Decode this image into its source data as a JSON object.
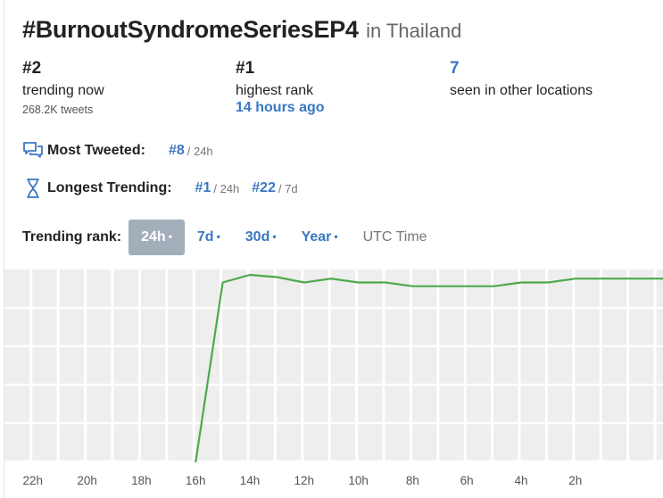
{
  "header": {
    "hashtag": "#BurnoutSyndromeSeriesEP4",
    "location": "in Thailand"
  },
  "stats": {
    "trending": {
      "rank": "#2",
      "label": "trending now",
      "tweets": "268.2K tweets"
    },
    "highest": {
      "rank": "#1",
      "label": "highest rank",
      "when": "14 hours ago"
    },
    "locations": {
      "count": "7",
      "label": "seen in other locations"
    }
  },
  "most_tweeted": {
    "icon": "chat-bubbles-icon",
    "label": "Most Tweeted:",
    "entries": [
      {
        "rank": "#8",
        "period": "/ 24h"
      }
    ]
  },
  "longest_trending": {
    "icon": "hourglass-icon",
    "label": "Longest Trending:",
    "entries": [
      {
        "rank": "#1",
        "period": "/ 24h"
      },
      {
        "rank": "#22",
        "period": "/ 7d"
      }
    ]
  },
  "tabs": {
    "label": "Trending rank:",
    "items": [
      {
        "label": "24h",
        "dot": "•",
        "active": true
      },
      {
        "label": "7d",
        "dot": "•",
        "active": false
      },
      {
        "label": "30d",
        "dot": "•",
        "active": false
      },
      {
        "label": "Year",
        "dot": "•",
        "active": false
      }
    ],
    "utc": "UTC Time"
  },
  "colors": {
    "accent": "#3a78c2",
    "line": "#4caa4c",
    "grid_bg": "#eeeeee",
    "active_tab": "#a3aebb"
  },
  "chart_data": {
    "type": "line",
    "title": "",
    "xlabel": "",
    "ylabel": "",
    "x_ticks": [
      "22h",
      "20h",
      "18h",
      "16h",
      "14h",
      "12h",
      "10h",
      "8h",
      "6h",
      "4h",
      "2h"
    ],
    "x_hours_ago": [
      23,
      22,
      21,
      20,
      19,
      18,
      17,
      16,
      15,
      14,
      13,
      12,
      11,
      10,
      9,
      8,
      7,
      6,
      5,
      4,
      3,
      2,
      1,
      0
    ],
    "series": [
      {
        "color": "#4caa4c",
        "rank": [
          null,
          null,
          null,
          null,
          null,
          null,
          50,
          3,
          1,
          1.6,
          3,
          2,
          3,
          3,
          4,
          4,
          4,
          4,
          3,
          3,
          2,
          2,
          2,
          2
        ]
      }
    ],
    "ylim": [
      1,
      50
    ],
    "y_inverted": true,
    "grid": true
  }
}
